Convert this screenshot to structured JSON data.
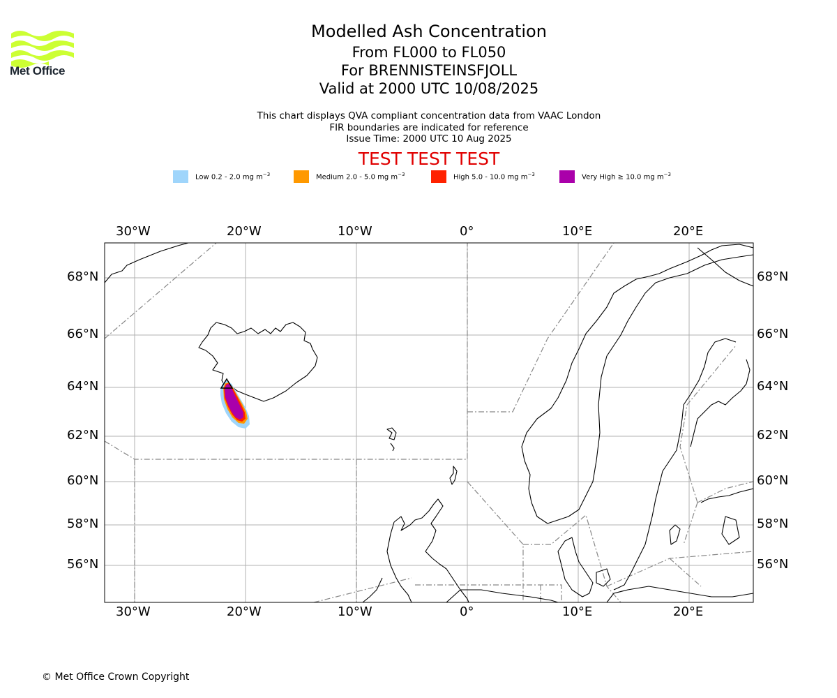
{
  "header": {
    "logo_text": "Met Office",
    "title": "Modelled Ash Concentration",
    "levels": "From FL000 to FL050",
    "volcano": "For BRENNISTEINSFJOLL",
    "valid": "Valid at 2000 UTC 10/08/2025"
  },
  "notes": {
    "line1": "This chart displays QVA compliant concentration data from VAAC London",
    "line2": "FIR boundaries are indicated for reference",
    "line3": "Issue Time: 2000 UTC 10 Aug 2025"
  },
  "test_banner": "TEST TEST TEST",
  "legend": [
    {
      "label": "Low 0.2 - 2.0 mg m",
      "exp": "−3",
      "color": "#9fd5fb"
    },
    {
      "label": "Medium 2.0 - 5.0 mg m",
      "exp": "−3",
      "color": "#ff9900"
    },
    {
      "label": "High 5.0 - 10.0 mg m",
      "exp": "−3",
      "color": "#ff2200"
    },
    {
      "label": "Very High ≥ 10.0 mg m",
      "exp": "−3",
      "color": "#aa00aa"
    }
  ],
  "map": {
    "lon_labels": [
      "30°W",
      "20°W",
      "10°W",
      "0°",
      "10°E",
      "20°E"
    ],
    "lat_labels": [
      "68°N",
      "66°N",
      "64°N",
      "62°N",
      "60°N",
      "58°N",
      "56°N"
    ]
  },
  "colors": {
    "logo_green": "#ccff33",
    "test_red": "#e00000",
    "grid": "#b0b0b0",
    "fir": "#888888"
  },
  "footer": {
    "copyright": "© Met Office Crown Copyright"
  }
}
